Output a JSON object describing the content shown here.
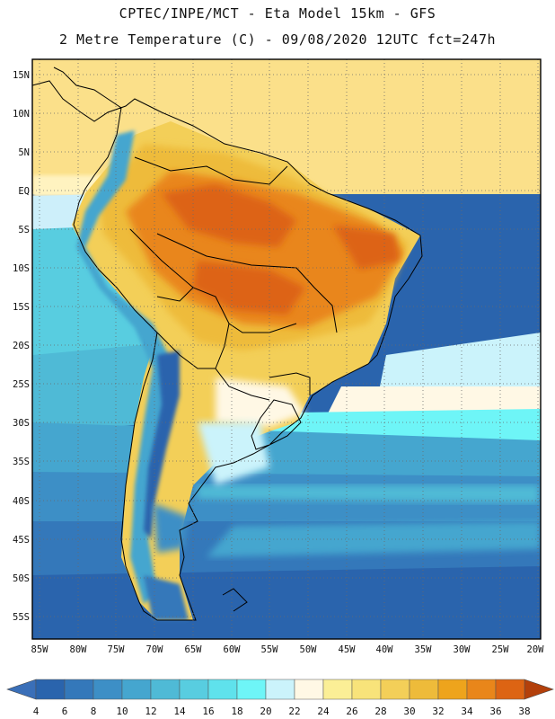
{
  "header": {
    "line1": "CPTEC/INPE/MCT -  Eta Model 15km - GFS",
    "line2": "2 Metre Temperature (C) - 09/08/2020 12UTC fct=247h"
  },
  "axes": {
    "lat_labels": [
      "15N",
      "10N",
      "5N",
      "EQ",
      "5S",
      "10S",
      "15S",
      "20S",
      "25S",
      "30S",
      "35S",
      "40S",
      "45S",
      "50S",
      "55S"
    ],
    "lon_labels": [
      "85W",
      "80W",
      "75W",
      "70W",
      "65W",
      "60W",
      "55W",
      "50W",
      "45W",
      "40W",
      "35W",
      "30W",
      "25W",
      "20W"
    ],
    "lat_values": [
      15,
      10,
      5,
      0,
      -5,
      -10,
      -15,
      -20,
      -25,
      -30,
      -35,
      -40,
      -45,
      -50,
      -55
    ],
    "lon_values": [
      -85,
      -80,
      -75,
      -70,
      -65,
      -60,
      -55,
      -50,
      -45,
      -40,
      -35,
      -30,
      -25,
      -20
    ],
    "lat_range": [
      -58,
      17
    ],
    "lon_range": [
      -85.5,
      -20
    ]
  },
  "colorbar": {
    "ticks": [
      "4",
      "6",
      "8",
      "10",
      "12",
      "14",
      "16",
      "18",
      "20",
      "22",
      "24",
      "26",
      "28",
      "30",
      "32",
      "34",
      "36",
      "38"
    ],
    "colors": [
      "#2a64ad",
      "#3478ba",
      "#3d8fc6",
      "#45a6cf",
      "#4fbad6",
      "#58cde0",
      "#5fe2ec",
      "#6ef5f7",
      "#cbf3fb",
      "#fff8e5",
      "#fbef96",
      "#f8e37a",
      "#f3cf58",
      "#eebb3a",
      "#eea41c",
      "#e9861a",
      "#dd6413",
      "#c54a0c"
    ],
    "left_arrow": "#3a6fb8",
    "right_arrow": "#b3400b"
  }
}
